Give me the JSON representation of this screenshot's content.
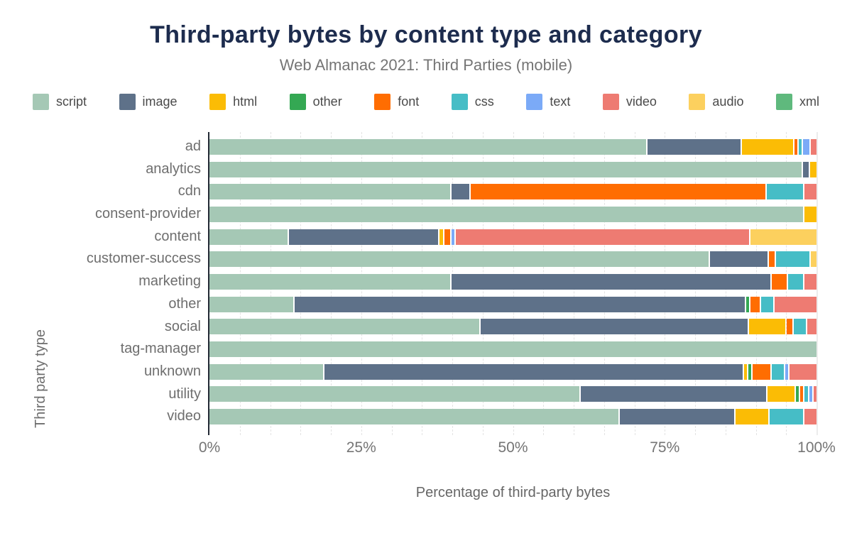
{
  "header": {
    "title": "Third-party bytes by content type and category",
    "subtitle": "Web Almanac 2021: Third Parties (mobile)"
  },
  "chart_data": {
    "type": "bar",
    "orientation": "horizontal",
    "stacked": true,
    "percent_scale": true,
    "title": "Third-party bytes by content type and category",
    "subtitle": "Web Almanac 2021: Third Parties (mobile)",
    "xlabel": "Percentage of third-party bytes",
    "ylabel": "Third party type",
    "xlim": [
      0,
      100
    ],
    "x_ticks": [
      {
        "value": 0,
        "label": "0%"
      },
      {
        "value": 25,
        "label": "25%"
      },
      {
        "value": 50,
        "label": "50%"
      },
      {
        "value": 75,
        "label": "75%"
      },
      {
        "value": 100,
        "label": "100%"
      }
    ],
    "grid": {
      "minor_step_percent": 5,
      "style": "dashed",
      "legend_position": "top"
    },
    "categories": [
      "ad",
      "analytics",
      "cdn",
      "consent-provider",
      "content",
      "customer-success",
      "marketing",
      "other",
      "social",
      "tag-manager",
      "unknown",
      "utility",
      "video"
    ],
    "series": [
      {
        "name": "script",
        "color": "#a5c8b5",
        "values": [
          73,
          98,
          40,
          98,
          13,
          83,
          40,
          14,
          45,
          100,
          19,
          62,
          68
        ]
      },
      {
        "name": "image",
        "color": "#5e7189",
        "values": [
          15.5,
          1,
          3,
          0,
          25,
          9.5,
          53,
          75,
          44.5,
          0,
          70,
          31,
          19
        ]
      },
      {
        "name": "html",
        "color": "#fbbc05",
        "values": [
          8.5,
          1,
          0,
          2,
          0.5,
          0,
          0,
          0,
          6,
          0,
          0.5,
          4.5,
          5.5
        ]
      },
      {
        "name": "other",
        "color": "#34a853",
        "values": [
          0,
          0,
          0,
          0,
          0,
          0,
          0,
          0.5,
          0,
          0,
          0.5,
          0.5,
          0
        ]
      },
      {
        "name": "font",
        "color": "#ff6d01",
        "values": [
          0.5,
          0,
          49,
          0,
          1,
          1,
          2.5,
          1.5,
          1,
          0,
          3,
          0.5,
          0
        ]
      },
      {
        "name": "css",
        "color": "#46bdc6",
        "values": [
          0.5,
          0,
          6,
          0,
          0,
          5.5,
          2.5,
          2,
          2,
          0,
          2,
          0.5,
          5.5
        ]
      },
      {
        "name": "text",
        "color": "#7baaf7",
        "values": [
          1,
          0,
          0,
          0,
          0.5,
          0,
          0,
          0,
          0,
          0,
          0.5,
          0.5,
          0
        ]
      },
      {
        "name": "video",
        "color": "#ee7b72",
        "values": [
          1,
          0,
          2,
          0,
          49,
          0,
          2,
          7,
          1.5,
          0,
          4.5,
          0.5,
          2
        ]
      },
      {
        "name": "audio",
        "color": "#fcd05e",
        "values": [
          0,
          0,
          0,
          0,
          11,
          1,
          0,
          0,
          0,
          0,
          0,
          0,
          0
        ]
      },
      {
        "name": "xml",
        "color": "#5fb97d",
        "values": [
          0,
          0,
          0,
          0,
          0,
          0,
          0,
          0,
          0,
          0,
          0,
          0,
          0
        ]
      }
    ]
  }
}
